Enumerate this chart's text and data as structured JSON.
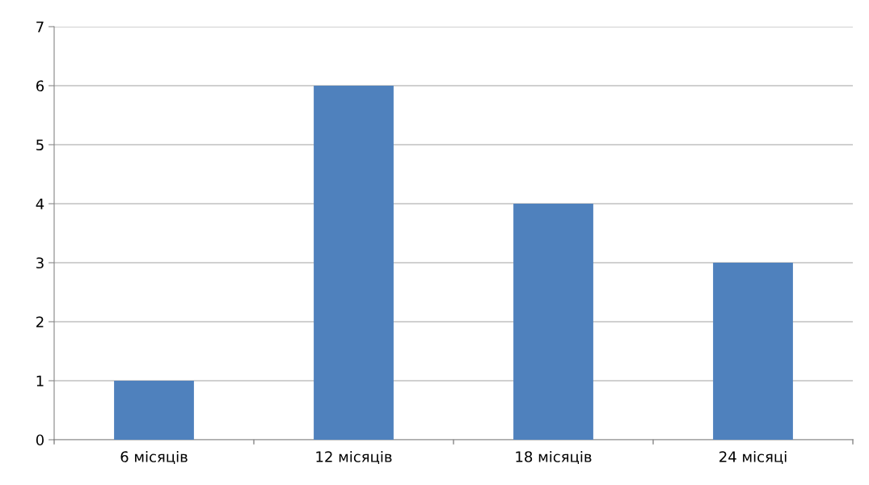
{
  "chart_data": {
    "type": "bar",
    "categories": [
      "6 місяців",
      "12 місяців",
      "18 місяців",
      "24 місяці"
    ],
    "values": [
      1,
      6,
      4,
      3
    ],
    "color": "#4f81bd",
    "ylim": [
      0,
      7
    ],
    "yticks": [
      0,
      1,
      2,
      3,
      4,
      5,
      6,
      7
    ],
    "grid": "y",
    "legend": false
  }
}
